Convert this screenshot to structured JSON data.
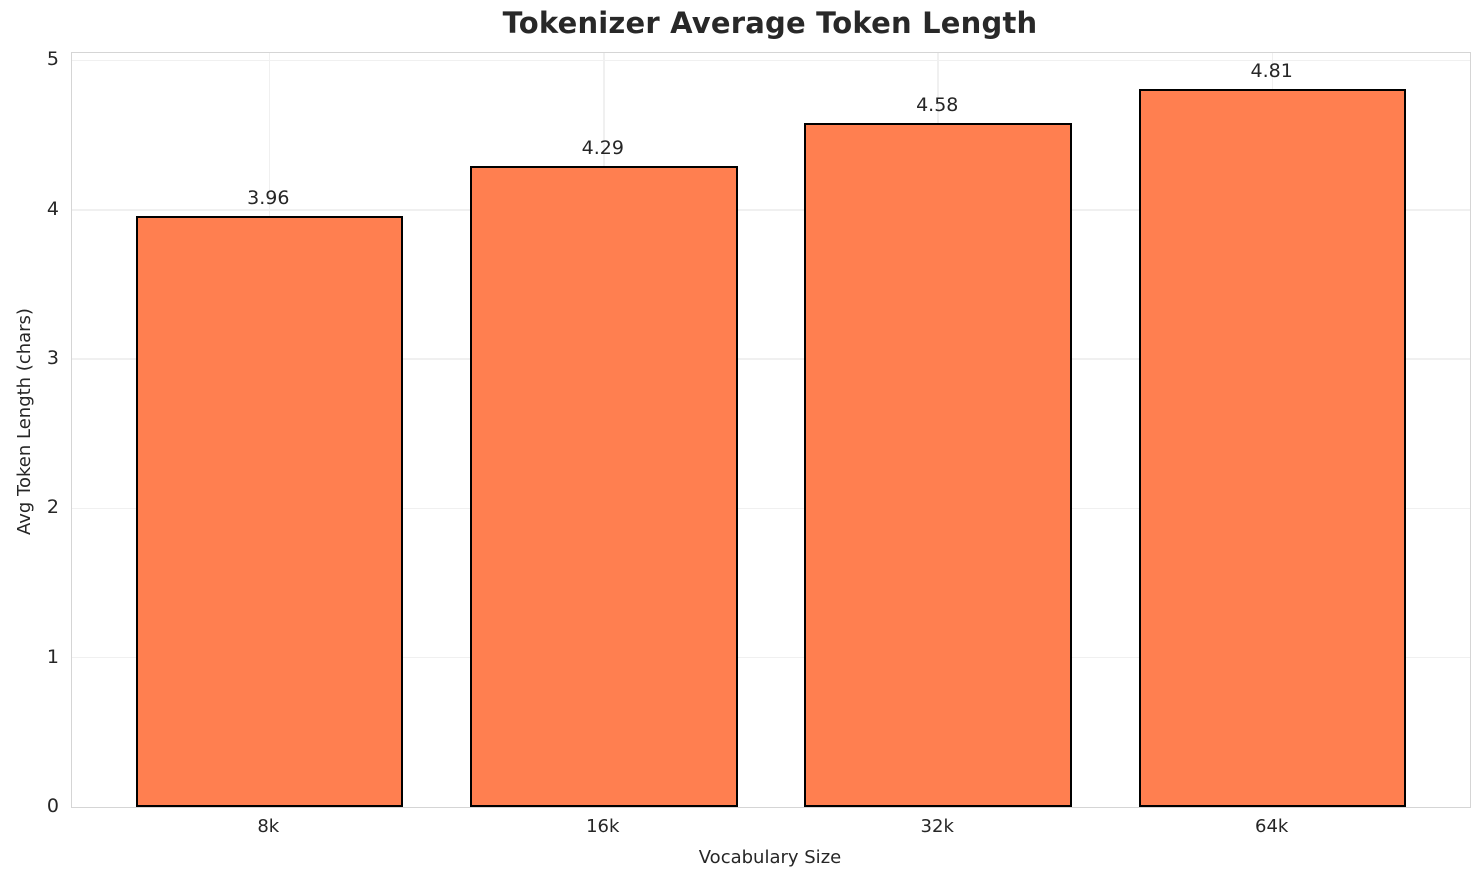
{
  "figure": {
    "background": "#ffffff"
  },
  "chart_data": {
    "type": "bar",
    "title": "Tokenizer Average Token Length",
    "xlabel": "Vocabulary Size",
    "ylabel": "Avg Token Length (chars)",
    "categories": [
      "8k",
      "16k",
      "32k",
      "64k"
    ],
    "values": [
      3.96,
      4.29,
      4.58,
      4.81
    ],
    "value_labels": [
      "3.96",
      "4.29",
      "4.58",
      "4.81"
    ],
    "ylim": [
      0,
      5.05
    ],
    "yticks": [
      "0",
      "1",
      "2",
      "3",
      "4",
      "5"
    ],
    "grid": "on",
    "legend": "none",
    "colors": {
      "bar_fill": "#FF7F50",
      "bar_edge": "#000000",
      "grid_line": "#f0f0f0",
      "spine": "#d5d5d5",
      "text": "#262626",
      "title_text": "#282828"
    }
  }
}
